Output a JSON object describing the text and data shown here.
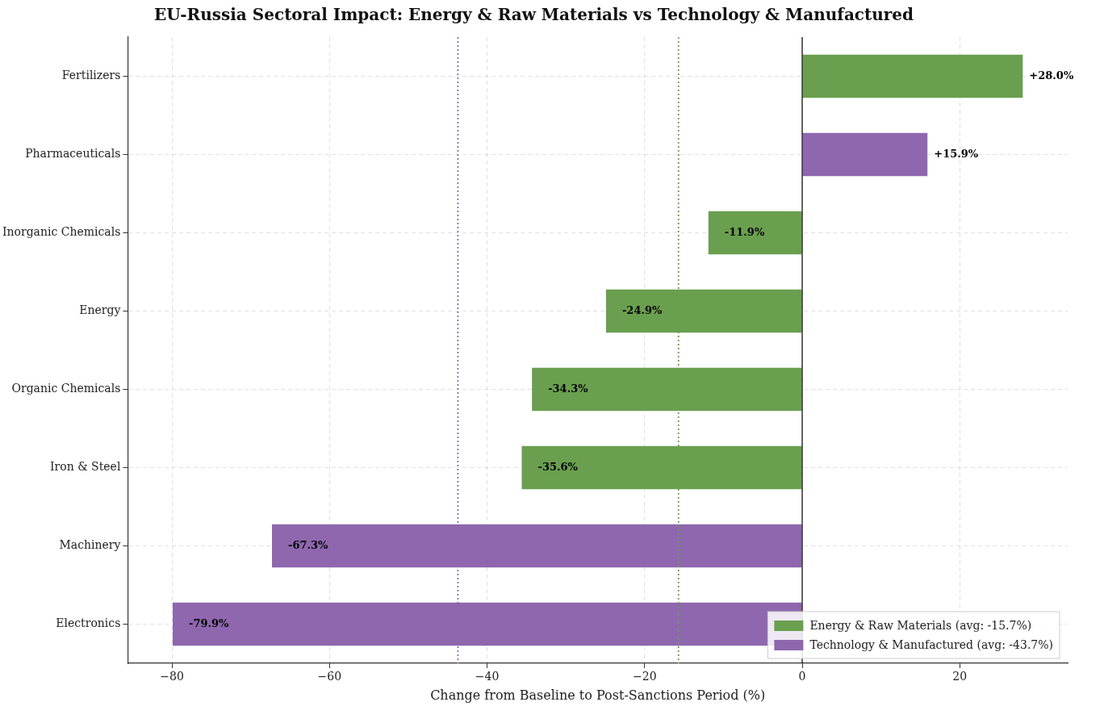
{
  "chart_data": {
    "type": "bar",
    "orientation": "horizontal",
    "title": "EU-Russia Sectoral Impact: Energy & Raw Materials vs Technology & Manufactured",
    "xlabel": "Change from Baseline to Post-Sanctions Period (%)",
    "categories": [
      "Fertilizers",
      "Pharmaceuticals",
      "Inorganic Chemicals",
      "Energy",
      "Organic Chemicals",
      "Iron & Steel",
      "Machinery",
      "Electronics"
    ],
    "series": [
      {
        "name": "Energy & Raw Materials (avg: -15.7%)",
        "color": "#6a9f4f",
        "values": [
          28.0,
          null,
          -11.9,
          -24.9,
          -34.3,
          -35.6,
          null,
          null
        ],
        "value_labels": [
          "+28.0%",
          null,
          "-11.9%",
          "-24.9%",
          "-34.3%",
          "-35.6%",
          null,
          null
        ]
      },
      {
        "name": "Technology & Manufactured (avg: -43.7%)",
        "color": "#8e67ae",
        "values": [
          null,
          15.9,
          null,
          null,
          null,
          null,
          -67.3,
          -79.9
        ],
        "value_labels": [
          null,
          "+15.9%",
          null,
          null,
          null,
          null,
          "-67.3%",
          "-79.9%"
        ]
      }
    ],
    "xlim": [
      -85.6,
      33.7
    ],
    "xticks": [
      {
        "value": -80,
        "label": "−80"
      },
      {
        "value": -60,
        "label": "−60"
      },
      {
        "value": -40,
        "label": "−40"
      },
      {
        "value": -20,
        "label": "−20"
      },
      0,
      20
    ],
    "ref_lines": [
      {
        "axis": "x",
        "value": -15.7,
        "color": "#6a9f4f",
        "line_style": "dotted"
      },
      {
        "axis": "x",
        "value": -43.7,
        "color": "#8e67ae",
        "line_style": "dotted"
      },
      {
        "axis": "x",
        "value": 0,
        "color": "#000000",
        "line_style": "solid"
      }
    ],
    "grid": true,
    "legend": "bottom right"
  }
}
